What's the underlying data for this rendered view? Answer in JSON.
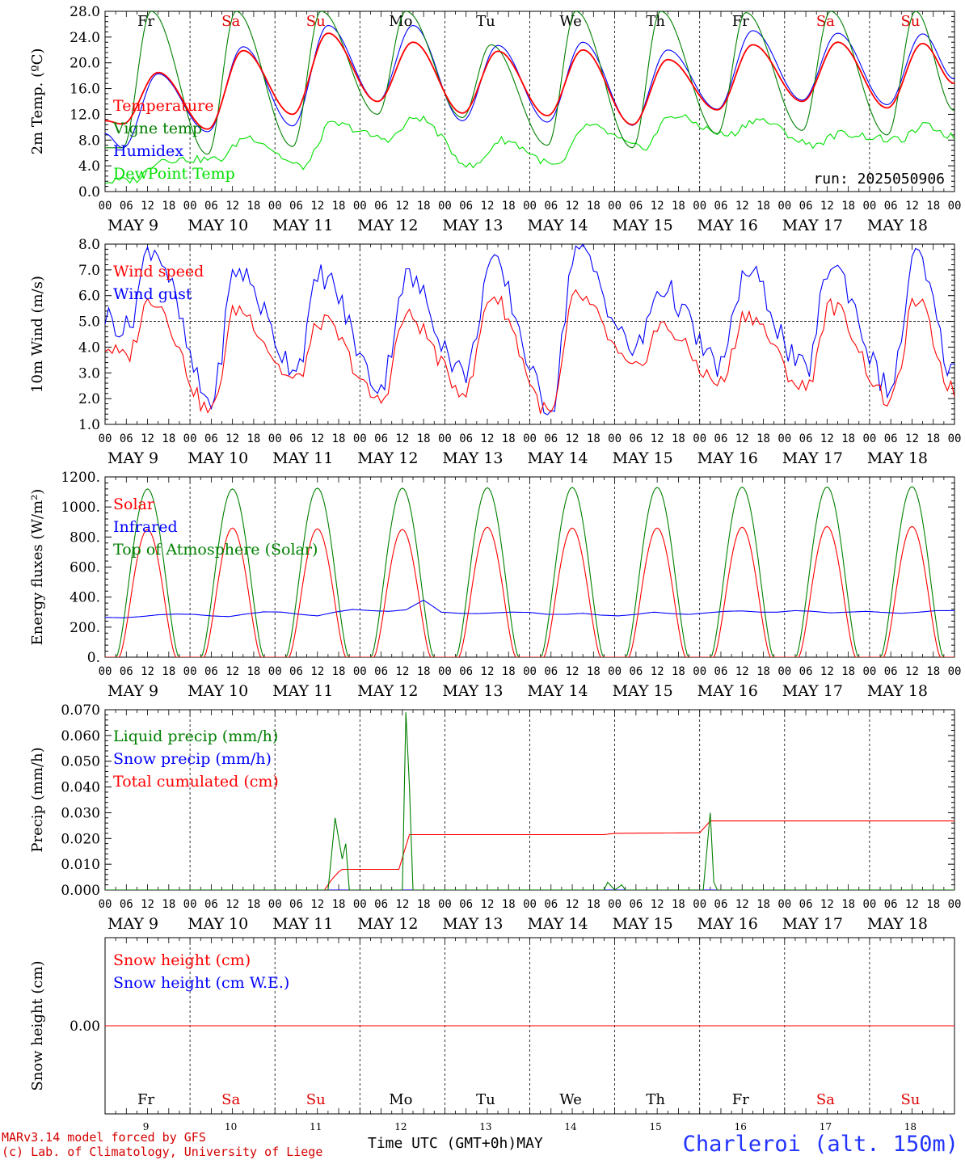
{
  "footer": {
    "credit_line1": "MARv3.14 model forced by GFS",
    "credit_line2": "(c) Lab. of Climatology, University of Liege",
    "station": "Charleroi (alt. 150m)",
    "xaxis_title": "Time UTC (GMT+0h)",
    "xaxis_month": "MAY"
  },
  "colors": {
    "red": "#ff0000",
    "blue": "#0000ff",
    "darkgreen": "#008000",
    "lightgreen": "#00e000",
    "weekday_black": "#000000",
    "weekend_red": "#e00000",
    "grid": "#000000",
    "text": "#000000"
  },
  "timeline": {
    "day_numbers": [
      "9",
      "10",
      "11",
      "12",
      "13",
      "14",
      "15",
      "16",
      "17",
      "18"
    ],
    "day_labels": [
      "MAY  9",
      "MAY 10",
      "MAY 11",
      "MAY 12",
      "MAY 13",
      "MAY 14",
      "MAY 15",
      "MAY 16",
      "MAY 17",
      "MAY 18"
    ],
    "weekdays": [
      "Fr",
      "Sa",
      "Su",
      "Mo",
      "Tu",
      "We",
      "Th",
      "Fr",
      "Sa",
      "Su"
    ],
    "weekend": [
      false,
      true,
      true,
      false,
      false,
      false,
      false,
      false,
      true,
      true
    ],
    "hour_ticks": [
      "00",
      "06",
      "12",
      "18"
    ],
    "end_tick": "00"
  },
  "chart_data": [
    {
      "id": "temperature",
      "type": "line",
      "ylabel": "2m Temp. (ºC)",
      "ylim": [
        0,
        28
      ],
      "yticks": [
        "0.0",
        "4.0",
        "8.0",
        "12.0",
        "16.0",
        "20.0",
        "24.0",
        "28.0"
      ],
      "annotation": "run: 2025050906",
      "series": [
        {
          "name": "Temperature",
          "color": "red",
          "daily_min": [
            10.5,
            9.7,
            12.0,
            14.0,
            12.2,
            11.8,
            10.4,
            12.7,
            14.0,
            13.0
          ],
          "min_hour": 5,
          "daily_max": [
            18.5,
            21.9,
            24.6,
            23.2,
            21.8,
            22.0,
            20.5,
            22.8,
            23.2,
            23.0
          ],
          "max_hour": 15,
          "start": 11.0,
          "end": 16.8
        },
        {
          "name": "Vigne temp",
          "color": "darkgreen",
          "daily_min": [
            6.8,
            5.8,
            7.0,
            12.0,
            11.5,
            7.2,
            6.8,
            9.0,
            9.5,
            8.8
          ],
          "min_hour": 5,
          "daily_max": [
            28.0,
            28.0,
            28.0,
            28.0,
            22.8,
            28.0,
            28.0,
            27.8,
            28.0,
            28.0
          ],
          "max_hour": 13,
          "start": 6.8,
          "end": 12.6
        },
        {
          "name": "Humidex",
          "color": "blue",
          "daily_min": [
            6.8,
            9.3,
            10.2,
            14.0,
            11.0,
            10.8,
            10.3,
            12.8,
            14.2,
            13.5
          ],
          "min_hour": 5,
          "daily_max": [
            18.3,
            22.5,
            25.8,
            25.8,
            22.7,
            23.2,
            22.0,
            25.0,
            24.6,
            24.5
          ],
          "max_hour": 15,
          "start": 9.0,
          "end": 17.5
        },
        {
          "name": "DewPoint Temp",
          "color": "lightgreen",
          "daily_min": [
            1.8,
            5.0,
            3.9,
            8.2,
            3.9,
            4.0,
            6.8,
            8.8,
            7.3,
            8.0
          ],
          "min_hour": 8,
          "daily_max": [
            5.0,
            8.5,
            10.5,
            11.5,
            8.0,
            10.2,
            11.8,
            11.2,
            9.0,
            10.2
          ],
          "max_hour": 16,
          "start": 1.5,
          "end": 8.5
        }
      ]
    },
    {
      "id": "wind",
      "type": "line",
      "ylabel": "10m Wind (m/s)",
      "ylim": [
        1,
        8
      ],
      "yticks": [
        "1.0",
        "2.0",
        "3.0",
        "4.0",
        "5.0",
        "6.0",
        "7.0",
        "8.0"
      ],
      "reference_line": 5.0,
      "series": [
        {
          "name": "Wind speed",
          "color": "red",
          "daily_min": [
            3.6,
            1.5,
            2.7,
            1.9,
            2.3,
            1.4,
            3.1,
            2.6,
            2.4,
            1.9
          ],
          "min_hour": 6,
          "daily_max": [
            5.9,
            5.5,
            5.0,
            5.2,
            6.0,
            6.0,
            4.8,
            5.3,
            5.6,
            5.8
          ],
          "max_hour": 13,
          "start": 4.0,
          "end": 2.3
        },
        {
          "name": "Wind gust",
          "color": "blue",
          "daily_min": [
            4.7,
            1.9,
            3.3,
            2.5,
            3.0,
            1.7,
            3.9,
            3.3,
            3.1,
            2.4
          ],
          "min_hour": 6,
          "daily_max": [
            7.9,
            7.0,
            6.8,
            6.7,
            7.2,
            7.8,
            6.3,
            6.9,
            7.2,
            7.5
          ],
          "max_hour": 13,
          "start": 5.2,
          "end": 3.0
        }
      ]
    },
    {
      "id": "energy",
      "type": "line",
      "ylabel": "Energy fluxes (W/m²)",
      "ylim": [
        0,
        1200
      ],
      "yticks": [
        "0.",
        "200.",
        "400.",
        "600.",
        "800.",
        "1000.",
        "1200."
      ],
      "series": [
        {
          "name": "Solar",
          "color": "red",
          "daily_peak": [
            850,
            860,
            855,
            850,
            865,
            860,
            860,
            865,
            870,
            870
          ],
          "sunrise_hour": 4.0,
          "sunset_hour": 20.0
        },
        {
          "name": "Infrared",
          "color": "blue",
          "values_6h": [
            265,
            262,
            270,
            282,
            287,
            285,
            275,
            270,
            288,
            302,
            300,
            285,
            275,
            300,
            318,
            310,
            305,
            315,
            380,
            300,
            292,
            290,
            295,
            300,
            298,
            285,
            285,
            292,
            280,
            275,
            285,
            300,
            290,
            285,
            295,
            305,
            308,
            300,
            300,
            310,
            305,
            295,
            300,
            305,
            298,
            292,
            300,
            310,
            310
          ]
        },
        {
          "name": "Top of Atmosphere (Solar)",
          "color": "darkgreen",
          "daily_peak": [
            1120,
            1120,
            1125,
            1125,
            1128,
            1130,
            1130,
            1132,
            1133,
            1135
          ],
          "sunrise_hour": 3.2,
          "sunset_hour": 20.8
        }
      ]
    },
    {
      "id": "precip",
      "type": "line",
      "ylabel": "Precip (mm/h)",
      "ylim": [
        0,
        0.07
      ],
      "yticks": [
        "0.000",
        "0.010",
        "0.020",
        "0.030",
        "0.040",
        "0.050",
        "0.060",
        "0.070"
      ],
      "series": [
        {
          "name": "Liquid precip (mm/h)",
          "color": "darkgreen",
          "events": [
            [
              62,
              0.0
            ],
            [
              63,
              0.0
            ],
            [
              65,
              0.028
            ],
            [
              67,
              0.012
            ],
            [
              68,
              0.018
            ],
            [
              69,
              0.0
            ],
            [
              84,
              0.0
            ],
            [
              85,
              0.069
            ],
            [
              86,
              0.04
            ],
            [
              87,
              0.0
            ],
            [
              141,
              0.0
            ],
            [
              142,
              0.003
            ],
            [
              144,
              0.0
            ],
            [
              146,
              0.002
            ],
            [
              147,
              0.0
            ],
            [
              169,
              0.0
            ],
            [
              171,
              0.03
            ],
            [
              172,
              0.003
            ],
            [
              173,
              0.0
            ]
          ]
        },
        {
          "name": "Snow precip (mm/h)",
          "color": "blue",
          "events": []
        },
        {
          "name": "Total cumulated (cm)",
          "color": "red",
          "steps": [
            [
              0,
              0.0
            ],
            [
              62,
              0.0
            ],
            [
              64,
              0.004
            ],
            [
              66,
              0.007
            ],
            [
              67,
              0.008
            ],
            [
              83,
              0.008
            ],
            [
              86,
              0.0215
            ],
            [
              141,
              0.0215
            ],
            [
              144,
              0.022
            ],
            [
              168,
              0.0222
            ],
            [
              171,
              0.0268
            ],
            [
              240,
              0.0268
            ]
          ]
        }
      ]
    },
    {
      "id": "snow",
      "type": "line",
      "ylabel": "Snow height (cm)",
      "ylim": [
        -1,
        1
      ],
      "yticks": [
        "0.00"
      ],
      "series": [
        {
          "name": "Snow height (cm)",
          "color": "red",
          "constant": 0.0
        },
        {
          "name": "Snow height (cm W.E.)",
          "color": "blue",
          "constant": 0.0
        }
      ]
    }
  ]
}
